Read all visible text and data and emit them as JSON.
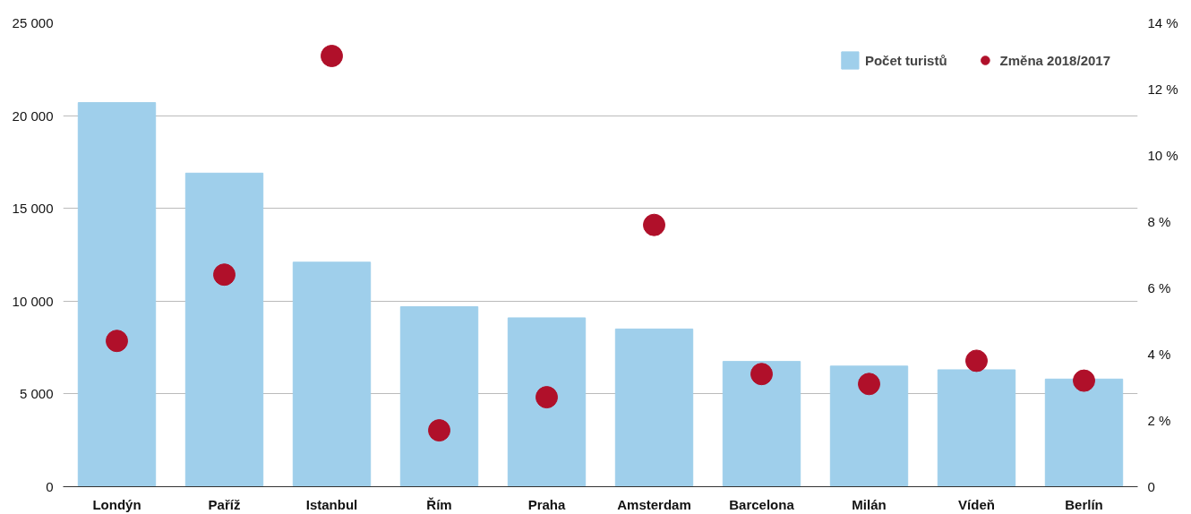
{
  "chart_data": {
    "type": "bar",
    "categories": [
      "Londýn",
      "Paříž",
      "Istanbul",
      "Řím",
      "Praha",
      "Amsterdam",
      "Barcelona",
      "Milán",
      "Vídeň",
      "Berlín"
    ],
    "series": [
      {
        "name": "Počet turistů",
        "color": "#9fcfeb",
        "values": [
          20700,
          16900,
          12100,
          9700,
          9100,
          8500,
          6750,
          6500,
          6300,
          5800
        ]
      },
      {
        "name": "Změna 2018/2017",
        "color": "#b0102a",
        "type": "scatter",
        "axis": "y2",
        "values": [
          4.4,
          6.4,
          13.0,
          1.7,
          2.7,
          7.9,
          3.4,
          3.1,
          3.8,
          3.2
        ]
      }
    ],
    "ylim": [
      0,
      25000
    ],
    "yticks": [
      {
        "value": 0,
        "label": "0"
      },
      {
        "value": 5000,
        "label": "5 000"
      },
      {
        "value": 10000,
        "label": "10 000"
      },
      {
        "value": 15000,
        "label": "15 000"
      },
      {
        "value": 20000,
        "label": "20 000"
      },
      {
        "value": 25000,
        "label": "25 000"
      }
    ],
    "y2lim": [
      0,
      14
    ],
    "y2ticks": [
      {
        "value": 0,
        "label": "0"
      },
      {
        "value": 2,
        "label": "2 %"
      },
      {
        "value": 4,
        "label": "4 %"
      },
      {
        "value": 6,
        "label": "6 %"
      },
      {
        "value": 8,
        "label": "8 %"
      },
      {
        "value": 10,
        "label": "10 %"
      },
      {
        "value": 12,
        "label": "12 %"
      },
      {
        "value": 14,
        "label": "14 %"
      }
    ],
    "grid": "y",
    "legend": "top right",
    "marker": "circle"
  }
}
